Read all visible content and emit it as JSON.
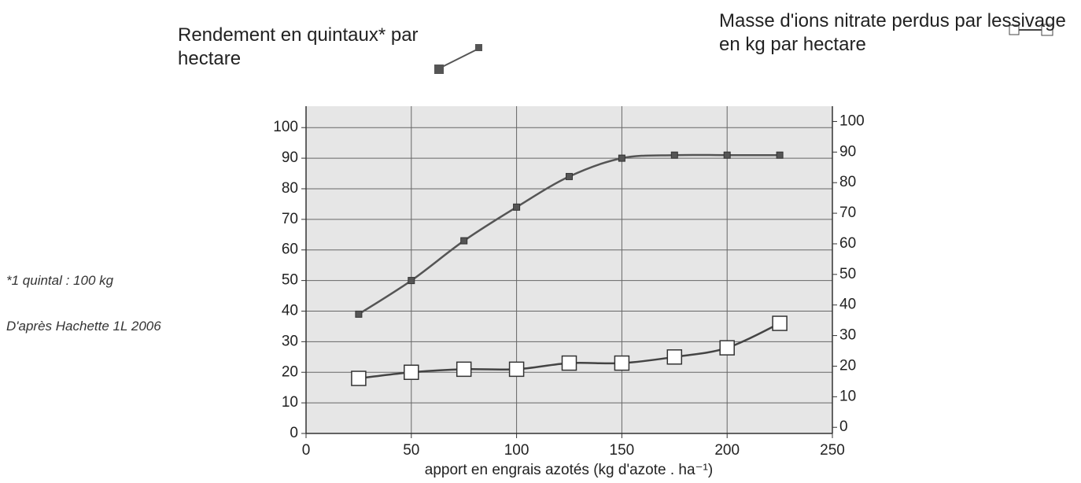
{
  "chart_data": {
    "type": "line",
    "x_label": "apport en engrais azotés (kg d'azote . ha⁻¹)",
    "x": [
      25,
      50,
      75,
      100,
      125,
      150,
      175,
      200,
      225
    ],
    "series": [
      {
        "name": "Rendement en quintaux* par hectare",
        "color": "#555555",
        "marker": "filled-square",
        "values": [
          39,
          50,
          63,
          74,
          84,
          90,
          91,
          91,
          91
        ]
      },
      {
        "name": "Masse d'ions nitrate perdus par lessivage en kg par hectare",
        "color": "#444444",
        "marker": "open-square",
        "axis": "y2",
        "values": [
          16,
          18,
          19,
          19,
          21,
          21,
          23,
          26,
          34
        ]
      }
    ],
    "xlim": [
      0,
      250
    ],
    "xticks": [
      0,
      50,
      100,
      150,
      200,
      250
    ],
    "ylim": [
      0,
      107
    ],
    "yticks": [
      0,
      10,
      20,
      30,
      40,
      50,
      60,
      70,
      80,
      90,
      100
    ],
    "y2lim": [
      -2,
      105
    ],
    "y2ticks": [
      0,
      10,
      20,
      30,
      40,
      50,
      60,
      70,
      80,
      90,
      100
    ],
    "grid": true,
    "notes": [
      "*1 quintal : 100 kg",
      "D'après Hachette 1L 2006"
    ]
  }
}
